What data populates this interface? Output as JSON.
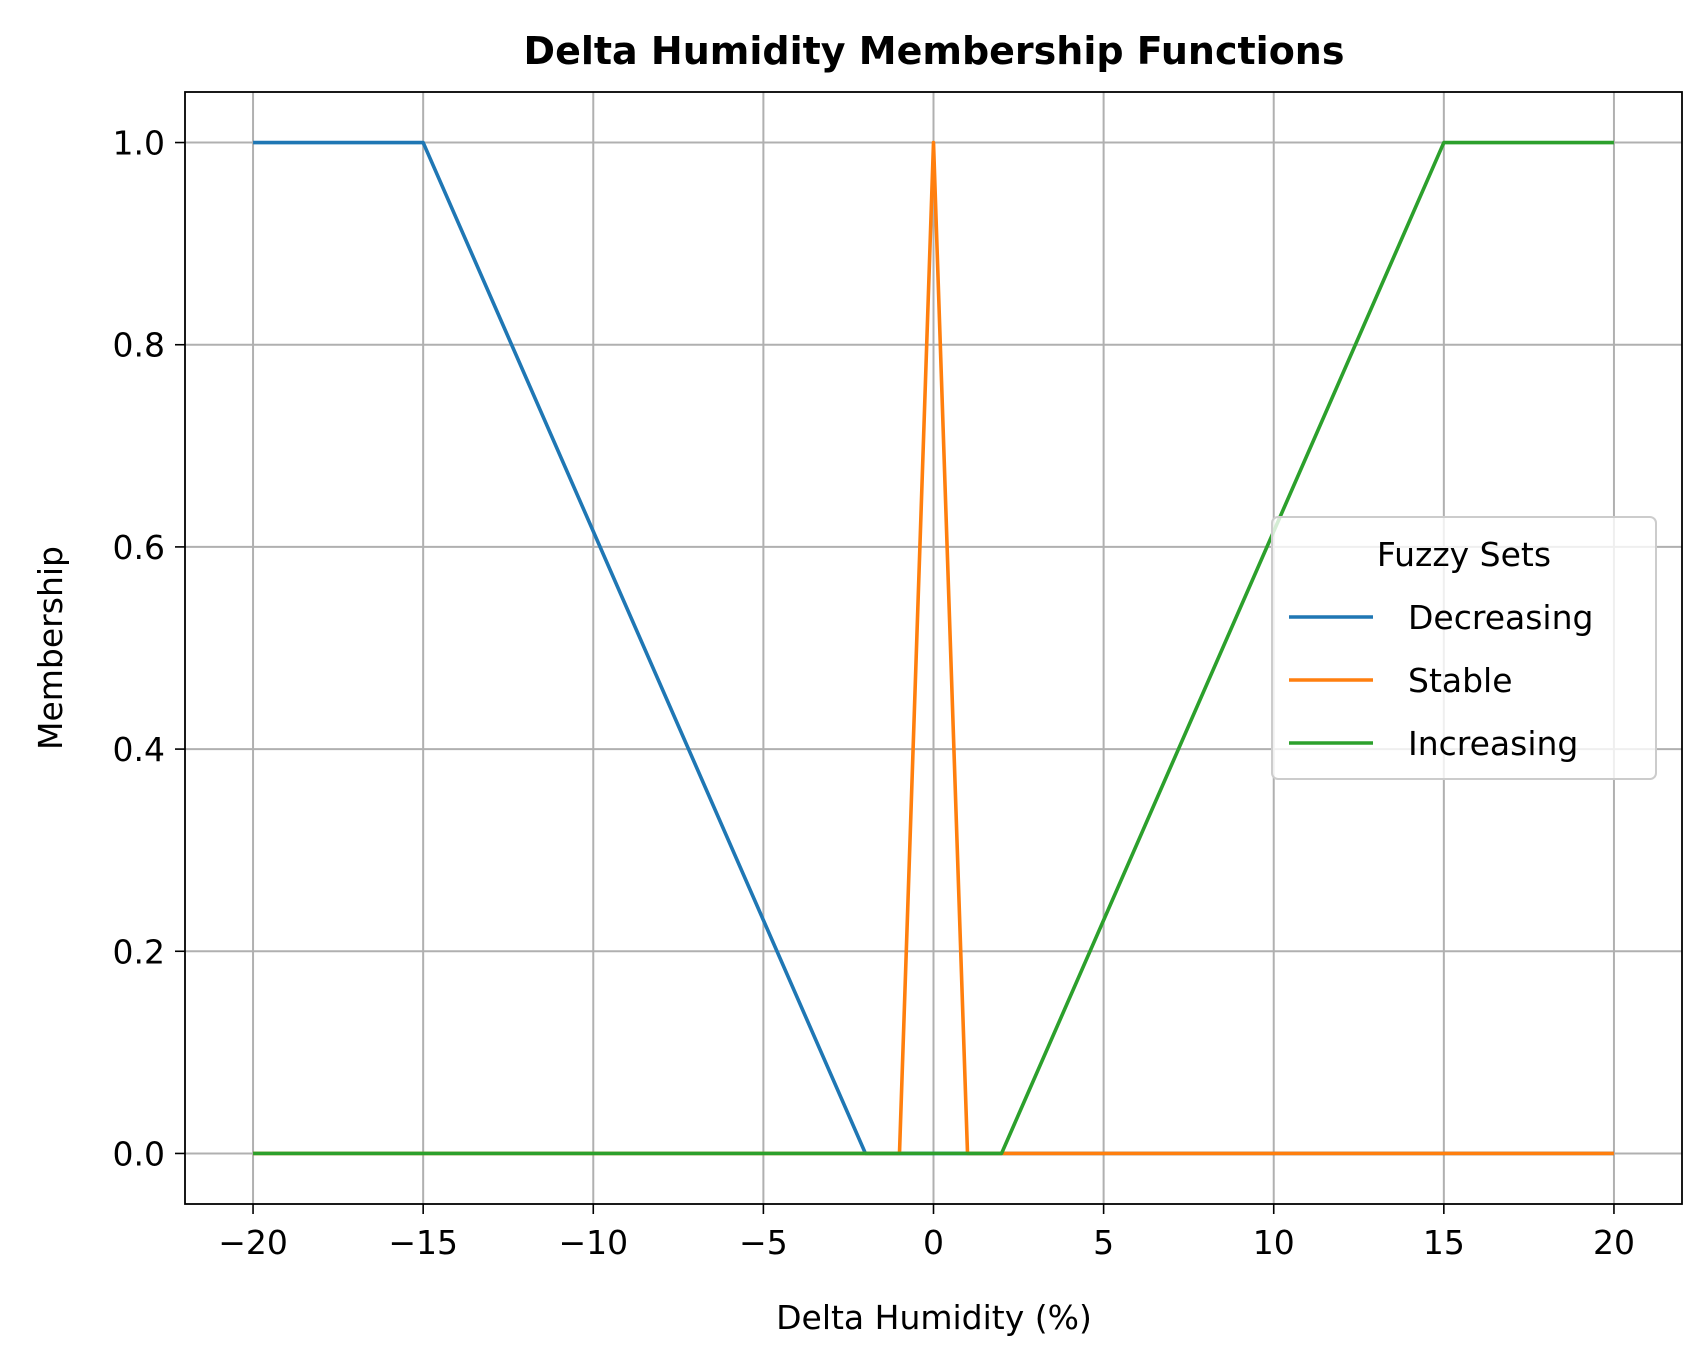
{
  "chart_data": {
    "type": "line",
    "title": "Delta Humidity Membership Functions",
    "xlabel": "Delta Humidity (%)",
    "ylabel": "Membership",
    "xlim": [
      -22,
      22
    ],
    "ylim": [
      -0.05,
      1.05
    ],
    "xticks": [
      -20,
      -15,
      -10,
      -5,
      0,
      5,
      10,
      15,
      20
    ],
    "xtick_labels": [
      "−20",
      "−15",
      "−10",
      "−5",
      "0",
      "5",
      "10",
      "15",
      "20"
    ],
    "yticks": [
      0.0,
      0.2,
      0.4,
      0.6,
      0.8,
      1.0
    ],
    "ytick_labels": [
      "0.0",
      "0.2",
      "0.4",
      "0.6",
      "0.8",
      "1.0"
    ],
    "grid": true,
    "legend": {
      "title": "Fuzzy Sets",
      "placement": "center-right"
    },
    "series": [
      {
        "name": "Decreasing",
        "color": "#1f77b4",
        "x": [
          -20,
          -15,
          -2,
          20
        ],
        "y": [
          1,
          1,
          0,
          0
        ]
      },
      {
        "name": "Stable",
        "color": "#ff7f0e",
        "x": [
          -20,
          -1,
          0,
          1,
          20
        ],
        "y": [
          0,
          0,
          1,
          0,
          0
        ]
      },
      {
        "name": "Increasing",
        "color": "#2ca02c",
        "x": [
          -20,
          2,
          15,
          20
        ],
        "y": [
          0,
          0,
          1,
          1
        ]
      }
    ]
  }
}
